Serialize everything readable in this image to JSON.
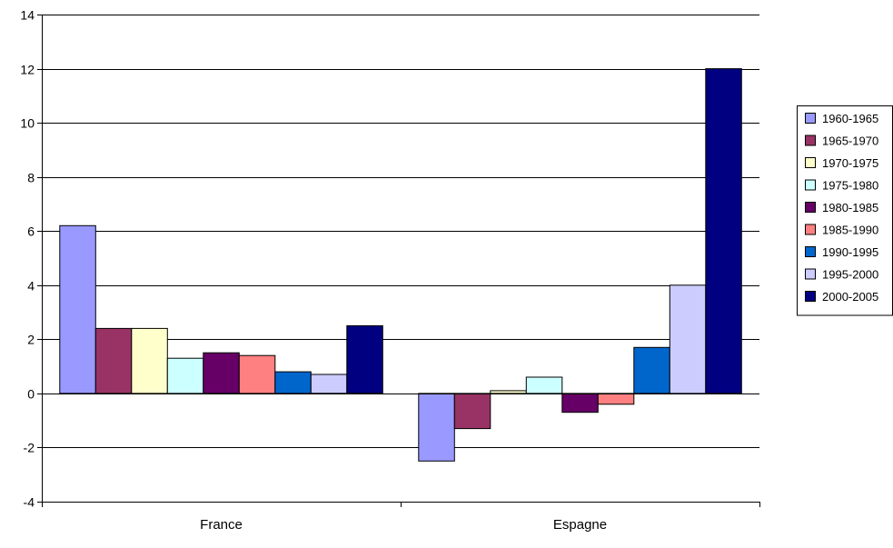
{
  "chart_data": {
    "type": "bar",
    "title": "",
    "xlabel": "",
    "ylabel": "",
    "categories": [
      "France",
      "Espagne"
    ],
    "ylim": [
      -4,
      14
    ],
    "yticks": [
      -4,
      -2,
      0,
      2,
      4,
      6,
      8,
      10,
      12,
      14
    ],
    "grid": true,
    "legend_position": "right",
    "series": [
      {
        "name": "1960-1965",
        "color": "#9999ff",
        "values": [
          6.2,
          -2.5
        ]
      },
      {
        "name": "1965-1970",
        "color": "#993366",
        "values": [
          2.4,
          -1.3
        ]
      },
      {
        "name": "1970-1975",
        "color": "#ffffcc",
        "values": [
          2.4,
          0.1
        ]
      },
      {
        "name": "1975-1980",
        "color": "#ccffff",
        "values": [
          1.3,
          0.6
        ]
      },
      {
        "name": "1980-1985",
        "color": "#660066",
        "values": [
          1.5,
          -0.7
        ]
      },
      {
        "name": "1985-1990",
        "color": "#ff8080",
        "values": [
          1.4,
          -0.4
        ]
      },
      {
        "name": "1990-1995",
        "color": "#0066cc",
        "values": [
          0.8,
          1.7
        ]
      },
      {
        "name": "1995-2000",
        "color": "#ccccff",
        "values": [
          0.7,
          4.0
        ]
      },
      {
        "name": "2000-2005",
        "color": "#000080",
        "values": [
          2.5,
          12.0
        ]
      }
    ]
  }
}
